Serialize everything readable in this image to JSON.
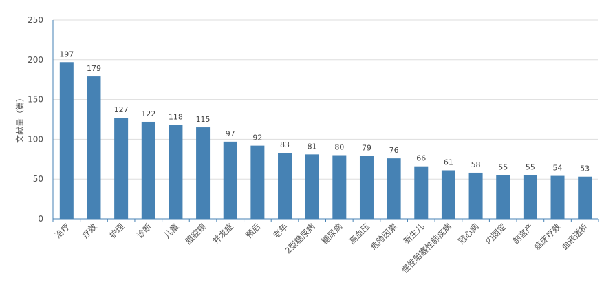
{
  "chart_data": {
    "type": "bar",
    "title": "",
    "xlabel": "",
    "ylabel": "文献量（篇）",
    "ylim": [
      0,
      250
    ],
    "yticks": [
      0,
      50,
      100,
      150,
      200,
      250
    ],
    "grid": true,
    "bar_color": "#4682B4",
    "categories": [
      "治疗",
      "疗效",
      "护理",
      "诊断",
      "儿童",
      "腹腔镜",
      "并发症",
      "预后",
      "老年",
      "2型糖尿病",
      "糖尿病",
      "高血压",
      "危险因素",
      "新生儿",
      "慢性阻塞性肺疾病",
      "冠心病",
      "内固定",
      "剖宫产",
      "临床疗效",
      "血液透析"
    ],
    "values": [
      197,
      179,
      127,
      122,
      118,
      115,
      97,
      92,
      83,
      81,
      80,
      79,
      76,
      66,
      61,
      58,
      55,
      55,
      54,
      53
    ]
  }
}
